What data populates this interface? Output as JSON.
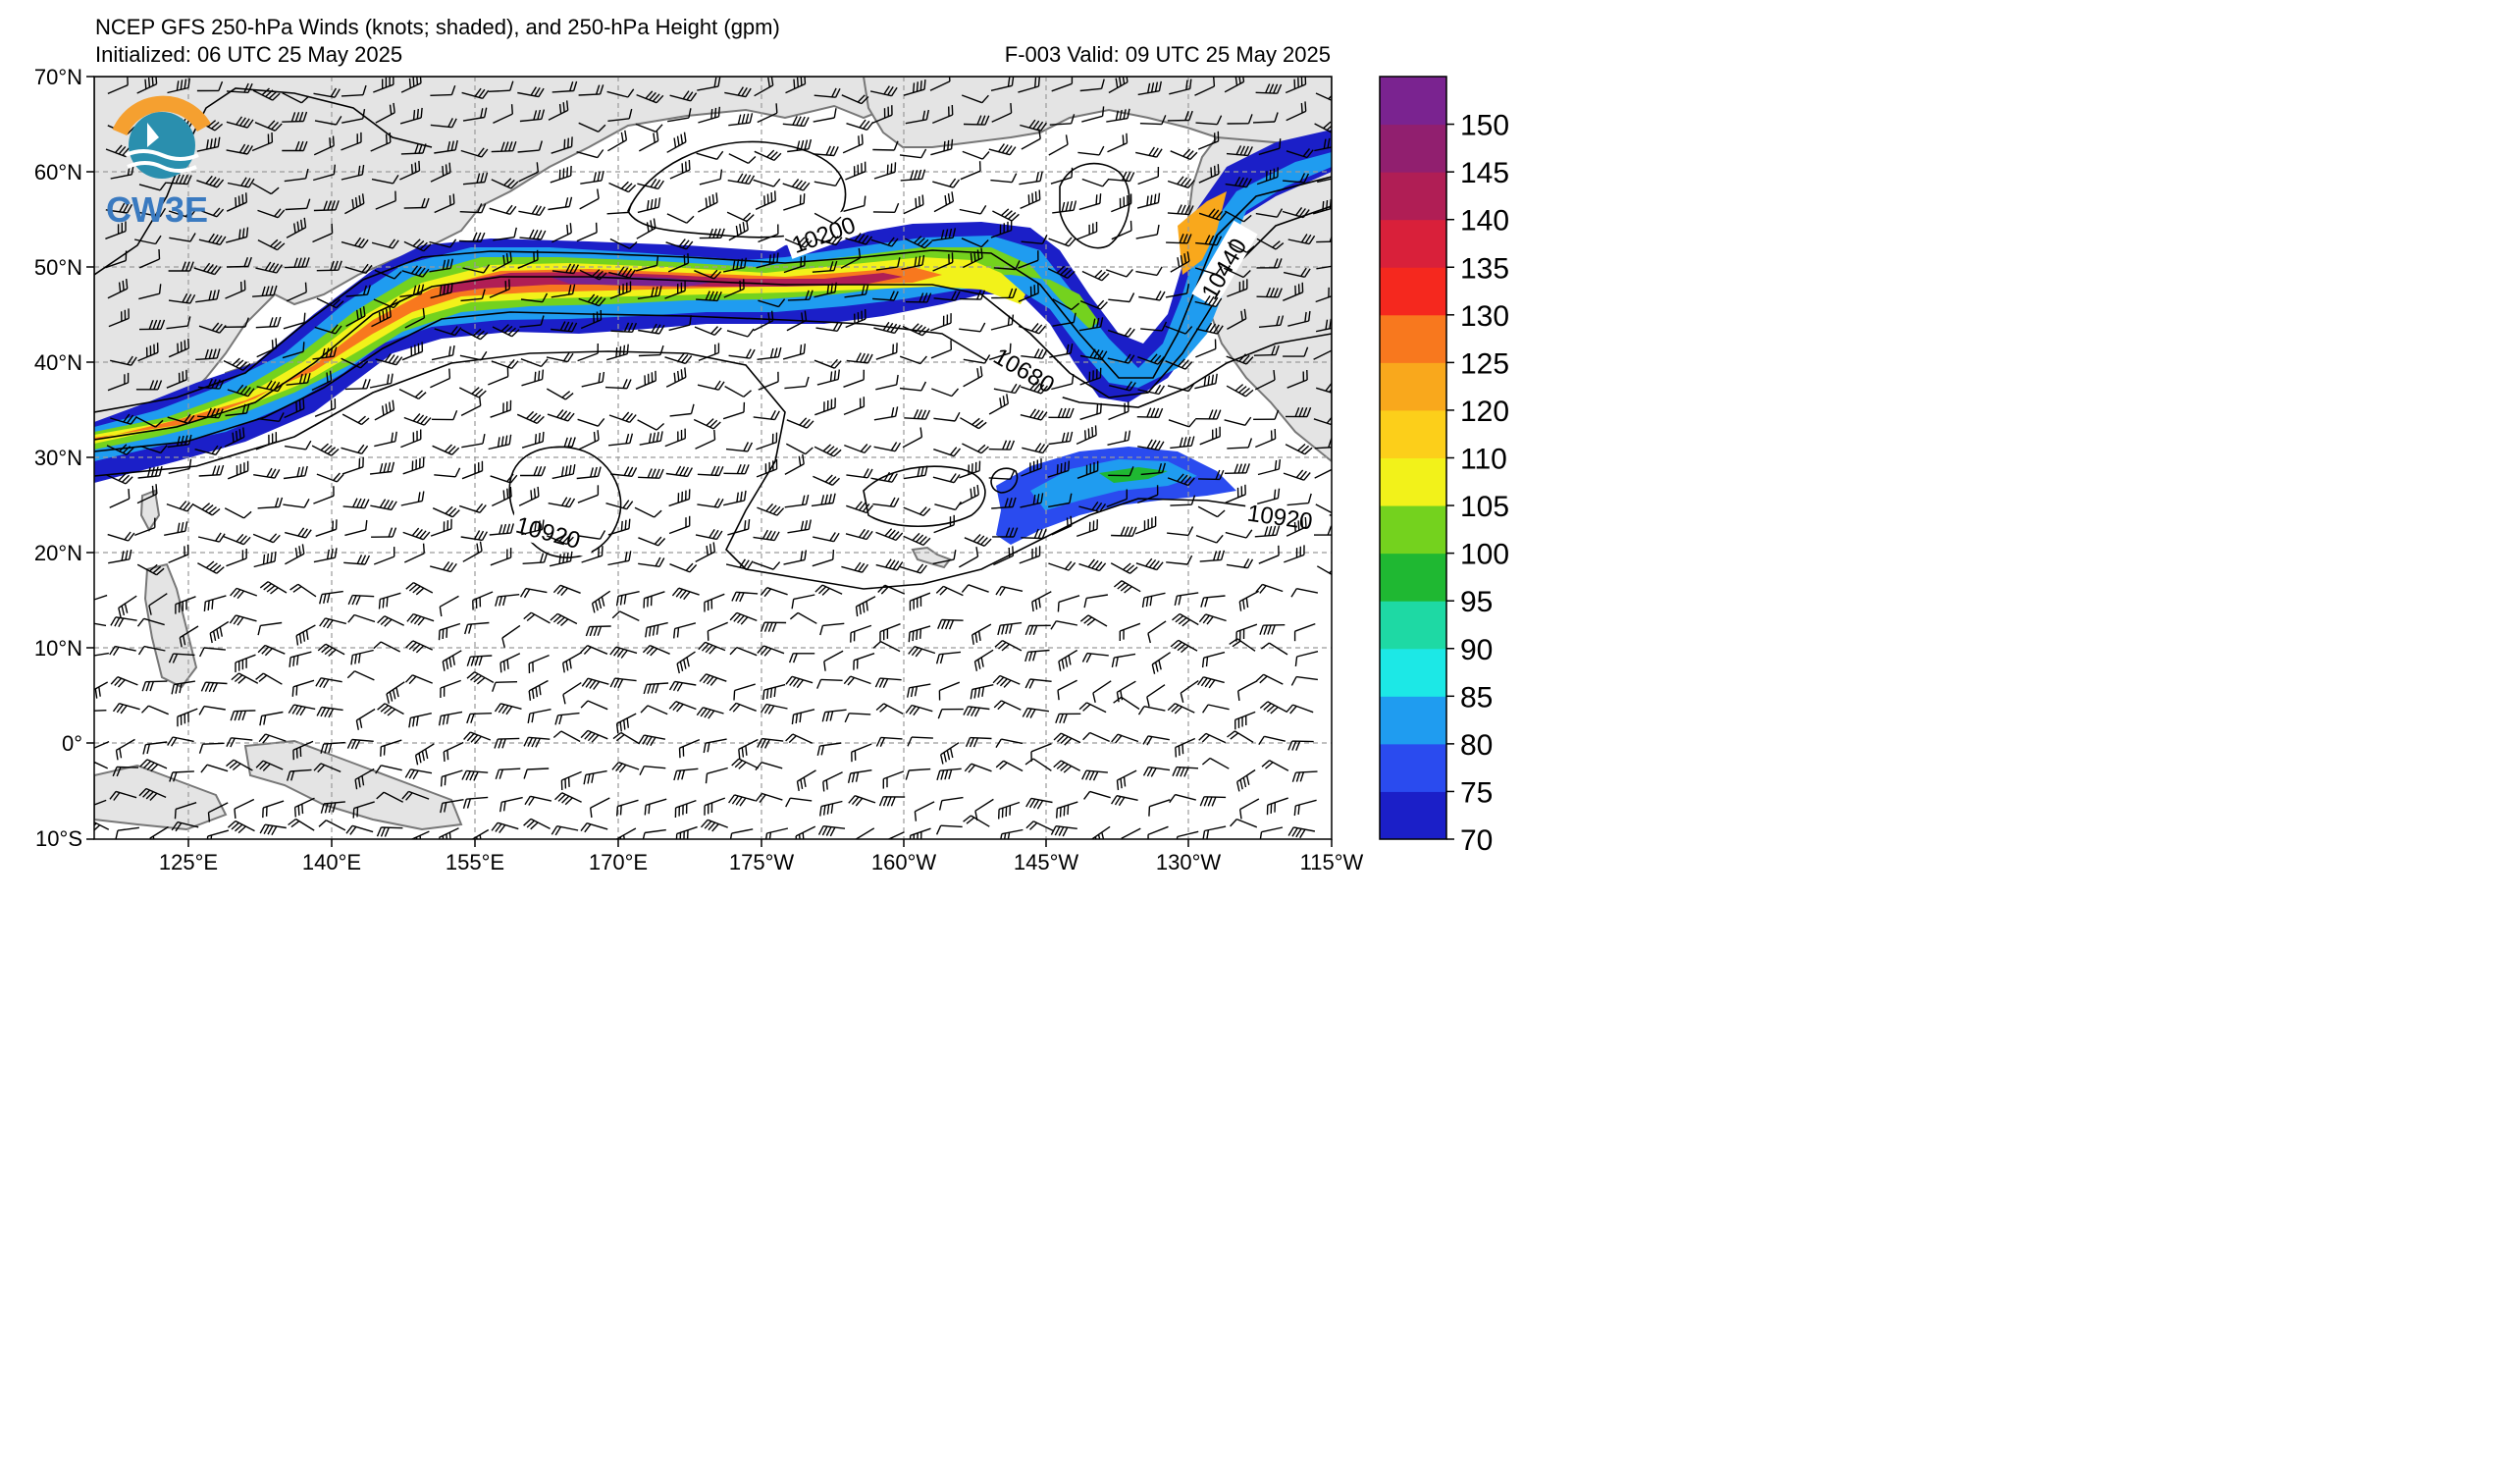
{
  "header": {
    "title": "NCEP GFS 250-hPa Winds (knots; shaded), and 250-hPa Height (gpm)",
    "initialized": "Initialized: 06 UTC 25 May 2025",
    "valid": "F-003  Valid: 09 UTC 25 May 2025"
  },
  "logo": {
    "text": "CW3E",
    "colors": {
      "orange": "#f5a030",
      "teal": "#2a8fae",
      "blue": "#3a7ac0"
    }
  },
  "axes": {
    "lat_labels": [
      "70°N",
      "60°N",
      "50°N",
      "40°N",
      "30°N",
      "20°N",
      "10°N",
      "0°",
      "10°S"
    ],
    "lon_labels": [
      "125°E",
      "140°E",
      "155°E",
      "170°E",
      "175°W",
      "160°W",
      "145°W",
      "130°W",
      "115°W"
    ]
  },
  "contour_labels": [
    "10200",
    "10440",
    "10680",
    "10920",
    "10920"
  ],
  "colorbar": {
    "levels": [
      "70",
      "75",
      "80",
      "85",
      "90",
      "95",
      "100",
      "105",
      "110",
      "120",
      "125",
      "130",
      "135",
      "140",
      "145",
      "150"
    ],
    "colors": [
      "#1b1fc8",
      "#2a4bef",
      "#1f9cf0",
      "#1ce8e6",
      "#1ed9a4",
      "#1fb832",
      "#74d21e",
      "#f2f21a",
      "#fccf1a",
      "#f9a81c",
      "#f8781e",
      "#f5281e",
      "#d9203a",
      "#b01e55",
      "#911f6f",
      "#7a2390"
    ]
  },
  "colors": {
    "land": "#e4e4e4",
    "coast": "#777777",
    "grid": "#9a9a9a",
    "contour": "#000000"
  }
}
